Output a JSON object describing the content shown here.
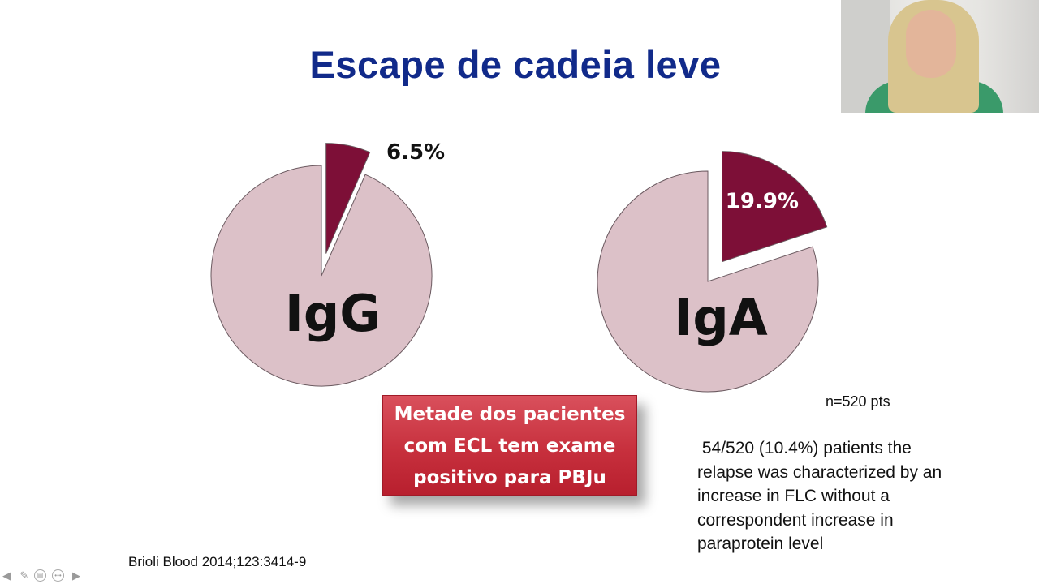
{
  "slide": {
    "title": "Escape de cadeia leve",
    "citation": "Brioli Blood 2014;123:3414-9",
    "n_label": "n=520 pts",
    "callout_lines": [
      "Metade dos pacientes",
      "com ECL tem exame",
      "positivo para PBJu"
    ],
    "note_lines": [
      " 54/520 (10.4%) patients the",
      "relapse was characterized by an",
      "increase in FLC without a",
      "correspondent increase in",
      "paraprotein level"
    ]
  },
  "colors": {
    "title": "#112a8a",
    "pie_main": "#dcc1c8",
    "pie_slice": "#7d0f37",
    "callout_red": "#c7303d"
  },
  "chart_data": [
    {
      "type": "pie",
      "label": "IgG",
      "slices": [
        {
          "name": "",
          "value": 6.5,
          "label": "6.5%",
          "exploded": true
        },
        {
          "name": "",
          "value": 93.5,
          "label": ""
        }
      ]
    },
    {
      "type": "pie",
      "label": "IgA",
      "slices": [
        {
          "name": "",
          "value": 19.9,
          "label": "19.9%",
          "exploded": true
        },
        {
          "name": "",
          "value": 80.1,
          "label": ""
        }
      ]
    }
  ],
  "controls": {
    "icons": [
      "arrow-left-icon",
      "pen-icon",
      "slides-icon",
      "more-icon",
      "arrow-right-icon"
    ]
  }
}
